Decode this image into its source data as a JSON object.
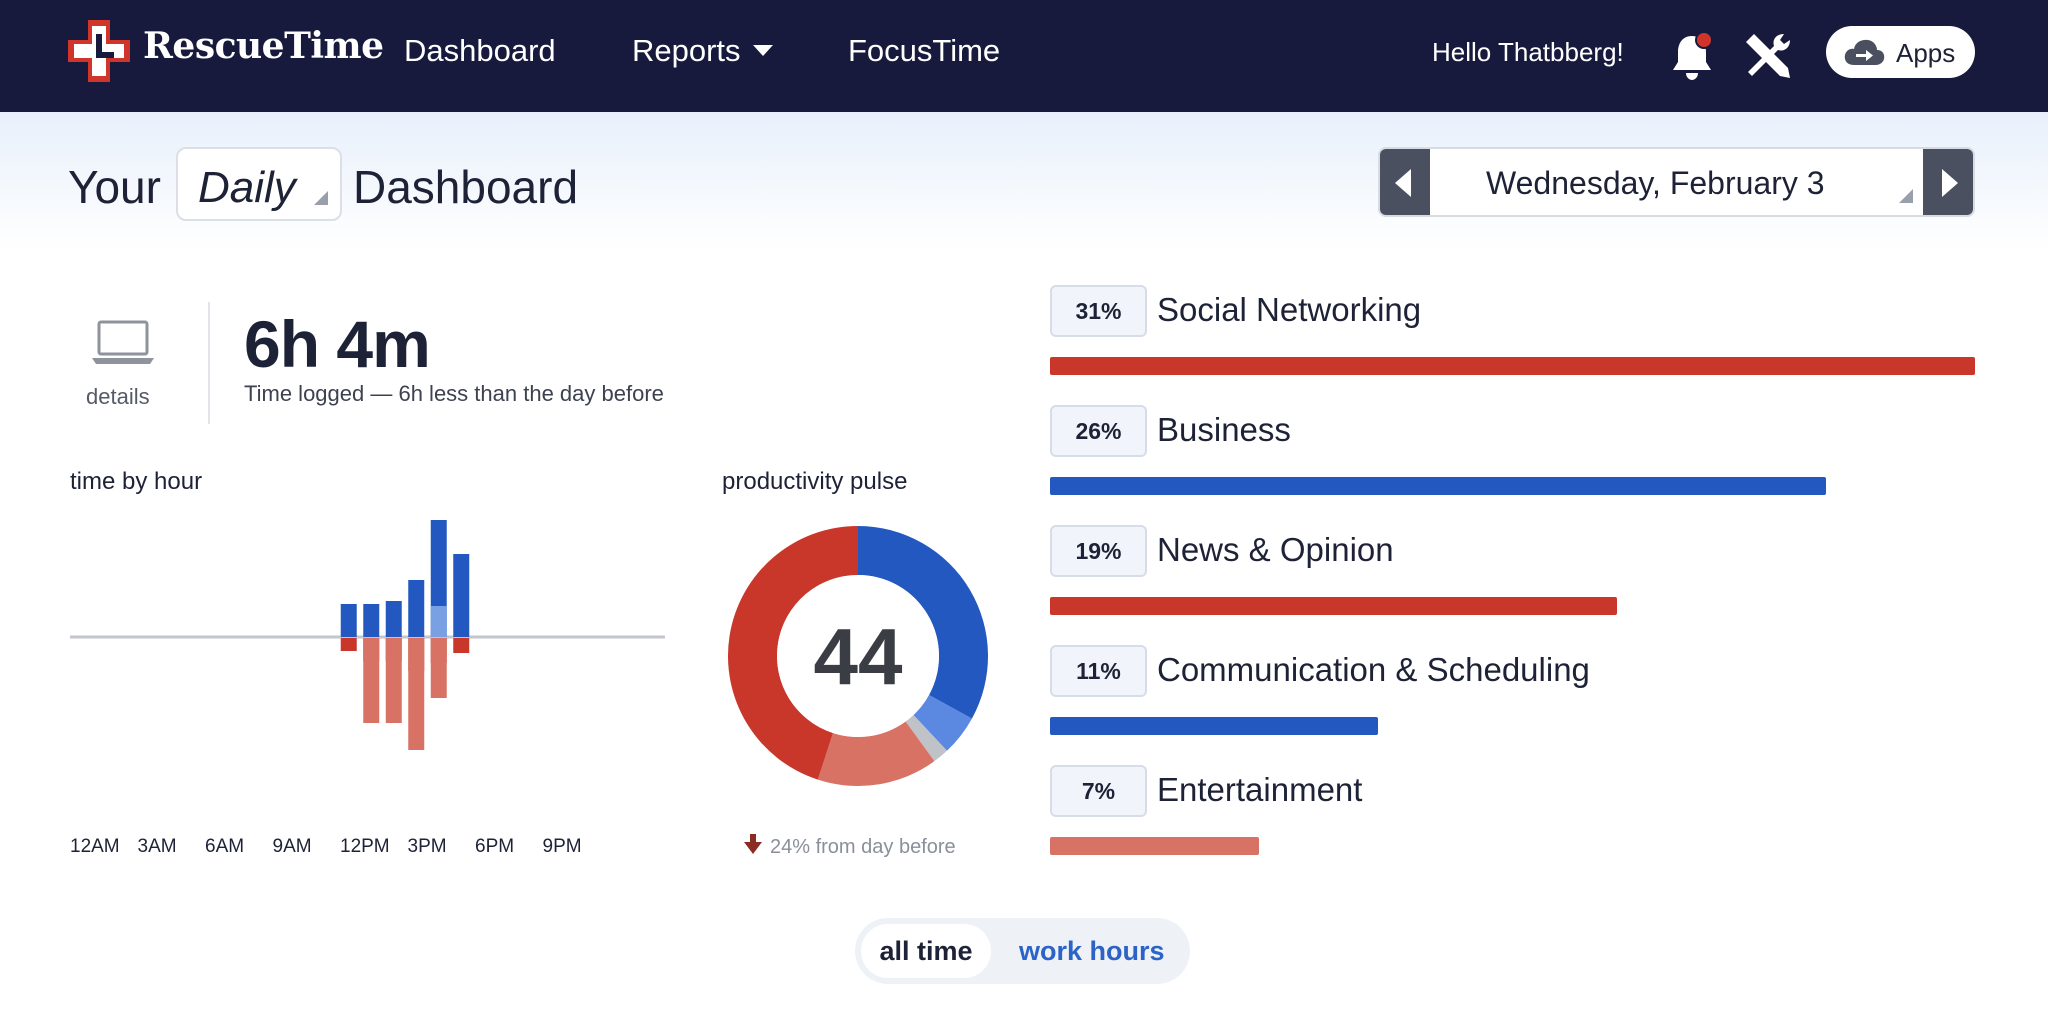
{
  "nav": {
    "brand": "RescueTime",
    "links": [
      "Dashboard",
      "Reports",
      "FocusTime"
    ],
    "greeting": "Hello Thatbberg!",
    "apps_label": "Apps",
    "icons": [
      "rescuetime-logo-icon",
      "bell-icon",
      "tools-icon",
      "cloud-upload-icon"
    ],
    "colors": {
      "background": "#171a3c",
      "notification_dot": "#d0352b"
    }
  },
  "header": {
    "title_prefix": "Your",
    "period": "Daily",
    "title_suffix": "Dashboard",
    "date": "Wednesday, February 3"
  },
  "summary": {
    "details_label": "details",
    "total_time": "6h 4m",
    "note": "Time logged — 6h less than the day before"
  },
  "time_by_hour": {
    "label": "time by hour",
    "tick_labels": [
      "12AM",
      "3AM",
      "6AM",
      "9AM",
      "12PM",
      "3PM",
      "6PM",
      "9PM"
    ]
  },
  "pulse": {
    "label": "productivity pulse",
    "score": "44",
    "change": "24% from day before"
  },
  "categories": [
    {
      "pct": "31%",
      "name": "Social Networking",
      "share": 31,
      "color": "#c8372a"
    },
    {
      "pct": "26%",
      "name": "Business",
      "share": 26,
      "color": "#2258c0"
    },
    {
      "pct": "19%",
      "name": "News & Opinion",
      "share": 19,
      "color": "#c8372a"
    },
    {
      "pct": "11%",
      "name": "Communication & Scheduling",
      "share": 11,
      "color": "#2258c0"
    },
    {
      "pct": "7%",
      "name": "Entertainment",
      "share": 7,
      "color": "#d87264"
    }
  ],
  "toggle": {
    "all_time": "all time",
    "work_hours": "work hours",
    "selected": "all time"
  },
  "chart_data": [
    {
      "type": "bar",
      "title": "time by hour",
      "x": [
        "11AM",
        "12PM",
        "1PM",
        "2PM",
        "3PM",
        "4PM"
      ],
      "tick_labels": [
        "12AM",
        "3AM",
        "6AM",
        "9AM",
        "12PM",
        "3PM",
        "6PM",
        "9PM"
      ],
      "series": [
        {
          "name": "",
          "values": [
            33,
            33,
            36,
            57,
            117,
            83
          ],
          "color": "#2258c0"
        },
        {
          "name": "",
          "values": [
            0,
            0,
            0,
            0,
            31,
            0
          ],
          "color": "#7aa0e4"
        },
        {
          "name": "",
          "values": [
            -13,
            -23,
            -23,
            -33,
            -25,
            -15
          ],
          "color": "#c8372a"
        },
        {
          "name": "",
          "values": [
            0,
            -85,
            -85,
            -112,
            -60,
            0
          ],
          "color": "#d87264"
        }
      ]
    },
    {
      "type": "pie",
      "title": "productivity pulse",
      "center_label": "44",
      "slices": [
        {
          "name": "",
          "value": 33,
          "color": "#2258c0"
        },
        {
          "name": "",
          "value": 5,
          "color": "#5b88e0"
        },
        {
          "name": "",
          "value": 2,
          "color": "#bfc3c8"
        },
        {
          "name": "",
          "value": 15,
          "color": "#d87264"
        },
        {
          "name": "",
          "value": 45,
          "color": "#c8372a"
        }
      ]
    },
    {
      "type": "bar",
      "title": "",
      "categories": [
        "Social Networking",
        "Business",
        "News & Opinion",
        "Communication & Scheduling",
        "Entertainment"
      ],
      "values": [
        31,
        26,
        19,
        11,
        7
      ]
    }
  ]
}
